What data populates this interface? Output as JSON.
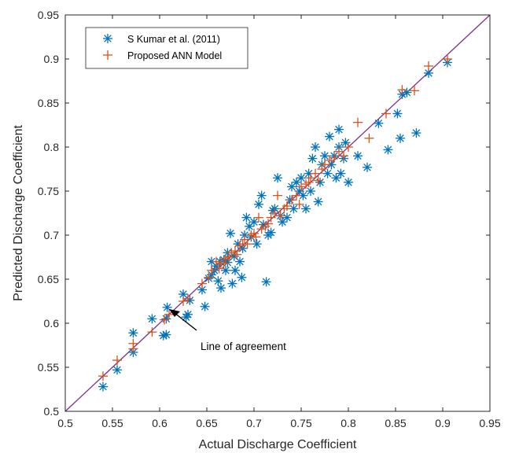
{
  "chart_data": {
    "type": "scatter",
    "title": "",
    "xlabel": "Actual Discharge Coefficient",
    "ylabel": "Predicted Discharge Coefficient",
    "xlim": [
      0.5,
      0.95
    ],
    "ylim": [
      0.5,
      0.95
    ],
    "xticks": [
      "0.5",
      "0.55",
      "0.6",
      "0.65",
      "0.7",
      "0.75",
      "0.8",
      "0.85",
      "0.9",
      "0.95"
    ],
    "yticks": [
      "0.5",
      "0.55",
      "0.6",
      "0.65",
      "0.7",
      "0.75",
      "0.8",
      "0.85",
      "0.9",
      "0.95"
    ],
    "grid": false,
    "legend_position": "top-left",
    "agreement_line": {
      "from": [
        0.5,
        0.5
      ],
      "to": [
        0.95,
        0.95
      ],
      "color": "#7e2f8e"
    },
    "annotation": {
      "text": "Line of agreement",
      "points_to": [
        0.61,
        0.615
      ]
    },
    "series": [
      {
        "name": "S Kumar et al. (2011)",
        "marker": "asterisk",
        "color": "#0072bd",
        "points": [
          [
            0.54,
            0.528
          ],
          [
            0.555,
            0.547
          ],
          [
            0.572,
            0.567
          ],
          [
            0.572,
            0.589
          ],
          [
            0.592,
            0.605
          ],
          [
            0.604,
            0.586
          ],
          [
            0.607,
            0.587
          ],
          [
            0.607,
            0.605
          ],
          [
            0.608,
            0.618
          ],
          [
            0.625,
            0.633
          ],
          [
            0.628,
            0.607
          ],
          [
            0.63,
            0.61
          ],
          [
            0.632,
            0.626
          ],
          [
            0.645,
            0.638
          ],
          [
            0.648,
            0.619
          ],
          [
            0.652,
            0.651
          ],
          [
            0.655,
            0.655
          ],
          [
            0.655,
            0.67
          ],
          [
            0.658,
            0.66
          ],
          [
            0.66,
            0.665
          ],
          [
            0.662,
            0.648
          ],
          [
            0.664,
            0.67
          ],
          [
            0.665,
            0.64
          ],
          [
            0.668,
            0.672
          ],
          [
            0.67,
            0.66
          ],
          [
            0.672,
            0.669
          ],
          [
            0.672,
            0.68
          ],
          [
            0.675,
            0.702
          ],
          [
            0.677,
            0.645
          ],
          [
            0.679,
            0.676
          ],
          [
            0.68,
            0.66
          ],
          [
            0.683,
            0.69
          ],
          [
            0.685,
            0.67
          ],
          [
            0.687,
            0.652
          ],
          [
            0.688,
            0.685
          ],
          [
            0.69,
            0.7
          ],
          [
            0.692,
            0.72
          ],
          [
            0.695,
            0.71
          ],
          [
            0.697,
            0.698
          ],
          [
            0.7,
            0.715
          ],
          [
            0.703,
            0.69
          ],
          [
            0.705,
            0.735
          ],
          [
            0.708,
            0.745
          ],
          [
            0.71,
            0.712
          ],
          [
            0.713,
            0.647
          ],
          [
            0.715,
            0.7
          ],
          [
            0.718,
            0.703
          ],
          [
            0.72,
            0.728
          ],
          [
            0.722,
            0.73
          ],
          [
            0.725,
            0.765
          ],
          [
            0.728,
            0.722
          ],
          [
            0.73,
            0.715
          ],
          [
            0.735,
            0.72
          ],
          [
            0.738,
            0.74
          ],
          [
            0.74,
            0.755
          ],
          [
            0.742,
            0.73
          ],
          [
            0.745,
            0.76
          ],
          [
            0.748,
            0.75
          ],
          [
            0.75,
            0.765
          ],
          [
            0.752,
            0.745
          ],
          [
            0.755,
            0.73
          ],
          [
            0.758,
            0.77
          ],
          [
            0.76,
            0.75
          ],
          [
            0.762,
            0.787
          ],
          [
            0.765,
            0.8
          ],
          [
            0.768,
            0.738
          ],
          [
            0.77,
            0.76
          ],
          [
            0.772,
            0.78
          ],
          [
            0.775,
            0.79
          ],
          [
            0.778,
            0.77
          ],
          [
            0.78,
            0.812
          ],
          [
            0.782,
            0.78
          ],
          [
            0.785,
            0.79
          ],
          [
            0.787,
            0.765
          ],
          [
            0.79,
            0.82
          ],
          [
            0.79,
            0.8
          ],
          [
            0.792,
            0.77
          ],
          [
            0.795,
            0.787
          ],
          [
            0.797,
            0.805
          ],
          [
            0.8,
            0.76
          ],
          [
            0.81,
            0.79
          ],
          [
            0.82,
            0.777
          ],
          [
            0.832,
            0.827
          ],
          [
            0.842,
            0.797
          ],
          [
            0.852,
            0.838
          ],
          [
            0.855,
            0.81
          ],
          [
            0.857,
            0.86
          ],
          [
            0.862,
            0.862
          ],
          [
            0.872,
            0.816
          ],
          [
            0.885,
            0.884
          ],
          [
            0.905,
            0.896
          ]
        ]
      },
      {
        "name": "Proposed ANN Model",
        "marker": "plus",
        "color": "#d95319",
        "points": [
          [
            0.54,
            0.54
          ],
          [
            0.555,
            0.558
          ],
          [
            0.572,
            0.577
          ],
          [
            0.572,
            0.571
          ],
          [
            0.592,
            0.59
          ],
          [
            0.605,
            0.604
          ],
          [
            0.61,
            0.61
          ],
          [
            0.625,
            0.625
          ],
          [
            0.63,
            0.628
          ],
          [
            0.645,
            0.645
          ],
          [
            0.652,
            0.652
          ],
          [
            0.655,
            0.66
          ],
          [
            0.66,
            0.67
          ],
          [
            0.663,
            0.662
          ],
          [
            0.665,
            0.668
          ],
          [
            0.668,
            0.668
          ],
          [
            0.67,
            0.673
          ],
          [
            0.673,
            0.675
          ],
          [
            0.676,
            0.68
          ],
          [
            0.68,
            0.682
          ],
          [
            0.682,
            0.678
          ],
          [
            0.685,
            0.688
          ],
          [
            0.688,
            0.69
          ],
          [
            0.69,
            0.695
          ],
          [
            0.693,
            0.69
          ],
          [
            0.697,
            0.7
          ],
          [
            0.7,
            0.702
          ],
          [
            0.702,
            0.698
          ],
          [
            0.705,
            0.72
          ],
          [
            0.708,
            0.707
          ],
          [
            0.712,
            0.71
          ],
          [
            0.715,
            0.713
          ],
          [
            0.718,
            0.72
          ],
          [
            0.722,
            0.725
          ],
          [
            0.725,
            0.745
          ],
          [
            0.728,
            0.722
          ],
          [
            0.732,
            0.73
          ],
          [
            0.735,
            0.733
          ],
          [
            0.74,
            0.74
          ],
          [
            0.745,
            0.745
          ],
          [
            0.748,
            0.735
          ],
          [
            0.75,
            0.755
          ],
          [
            0.755,
            0.758
          ],
          [
            0.758,
            0.76
          ],
          [
            0.76,
            0.765
          ],
          [
            0.765,
            0.77
          ],
          [
            0.768,
            0.762
          ],
          [
            0.772,
            0.775
          ],
          [
            0.775,
            0.78
          ],
          [
            0.78,
            0.785
          ],
          [
            0.785,
            0.788
          ],
          [
            0.79,
            0.795
          ],
          [
            0.795,
            0.79
          ],
          [
            0.8,
            0.8
          ],
          [
            0.81,
            0.828
          ],
          [
            0.822,
            0.81
          ],
          [
            0.84,
            0.838
          ],
          [
            0.857,
            0.865
          ],
          [
            0.87,
            0.864
          ],
          [
            0.885,
            0.892
          ],
          [
            0.905,
            0.9
          ]
        ]
      }
    ]
  }
}
